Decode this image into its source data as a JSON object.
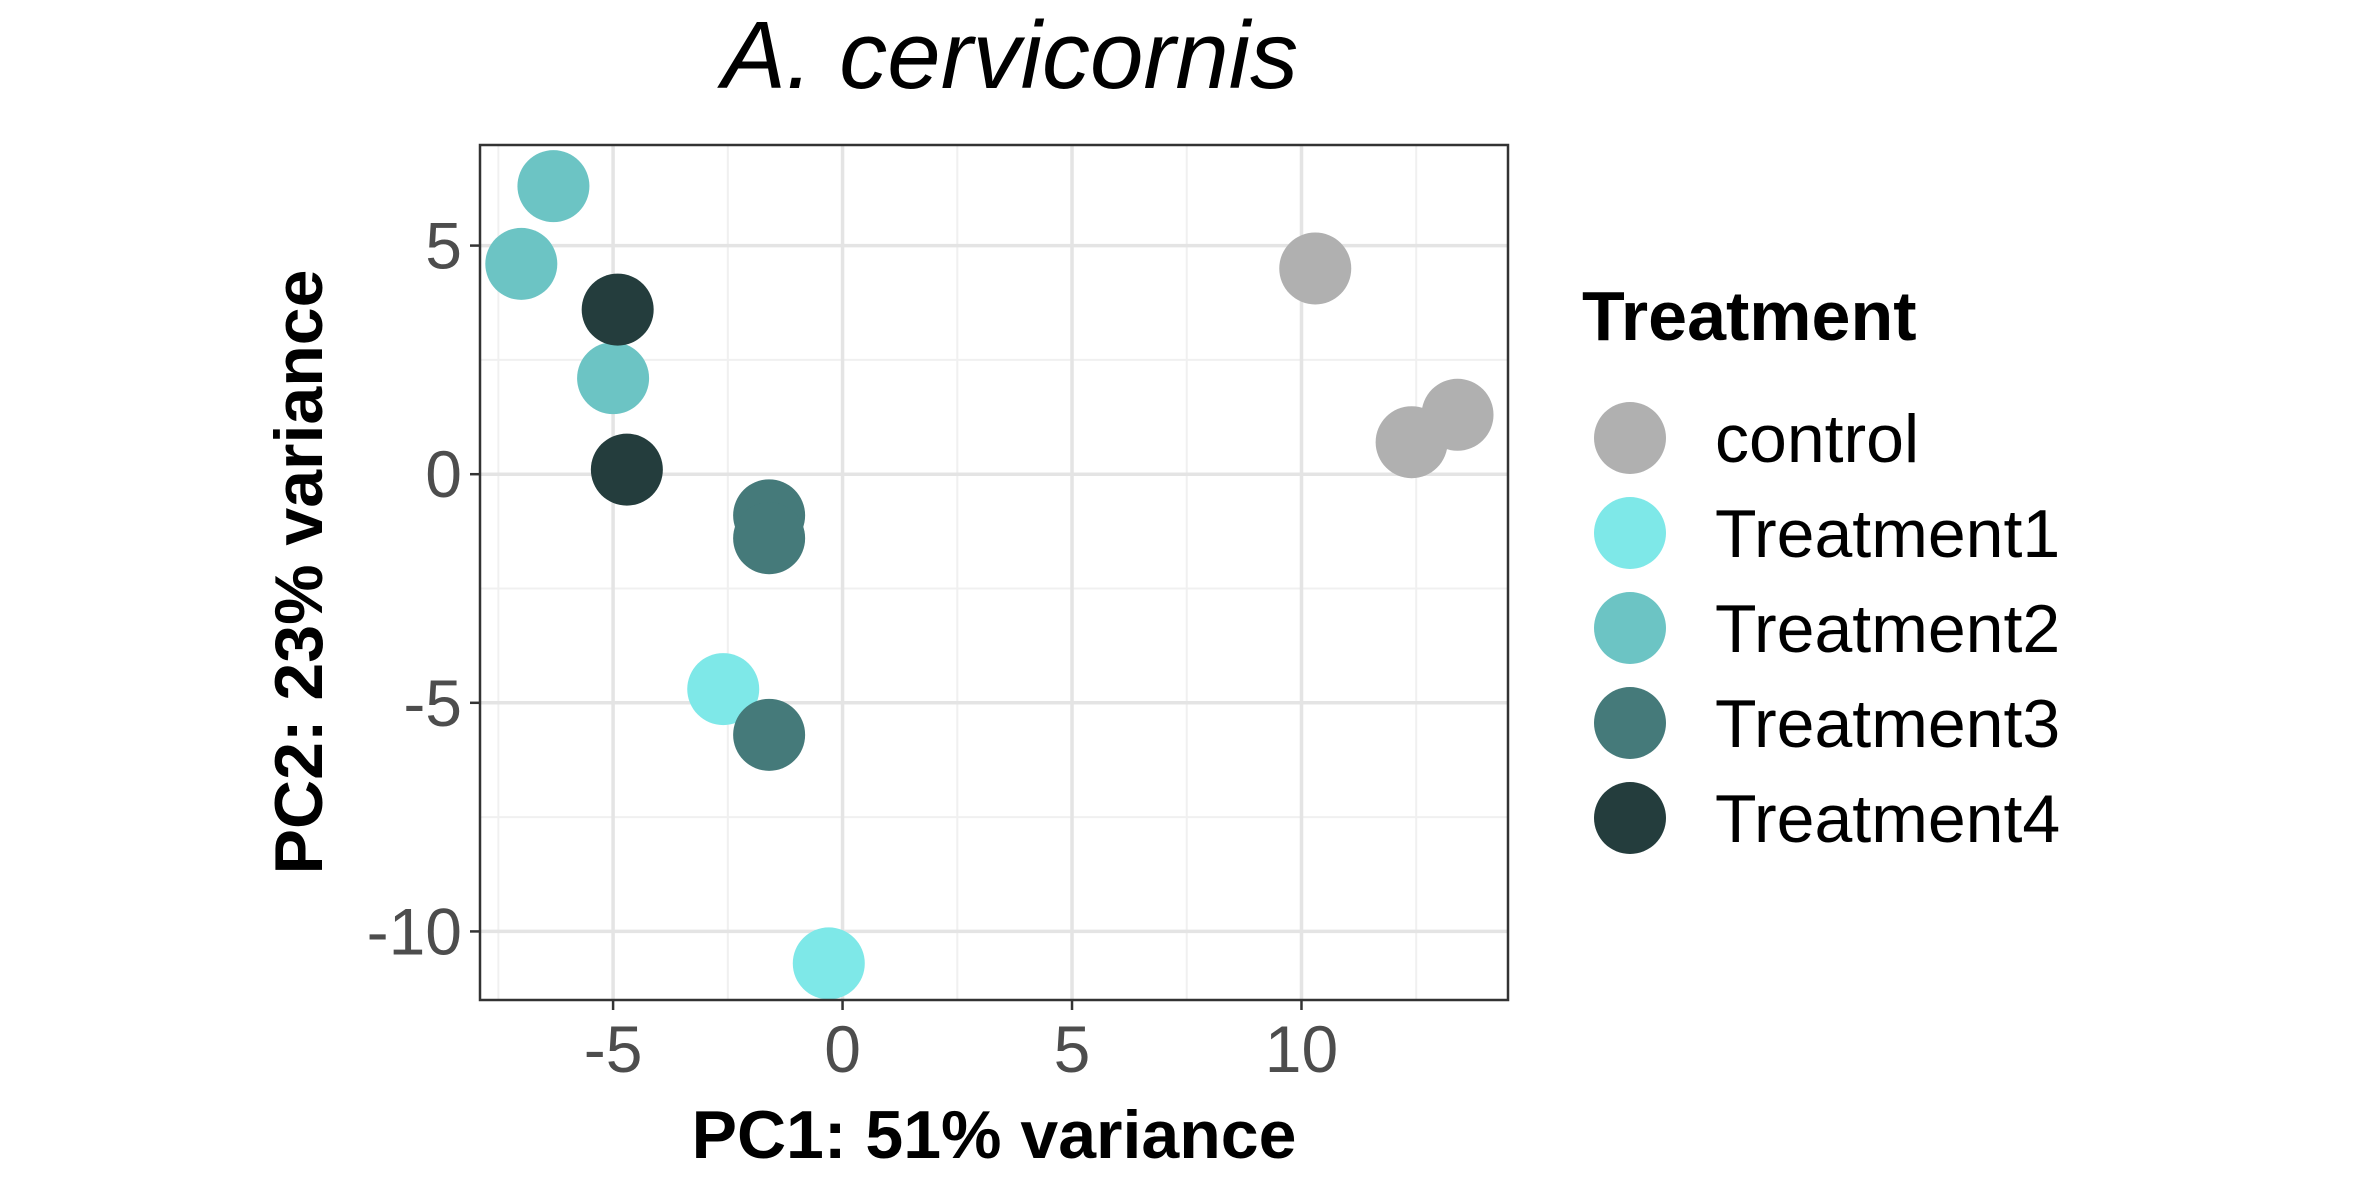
{
  "chart_data": {
    "type": "scatter",
    "title": "A. cervicornis",
    "xlabel": "PC1: 51% variance",
    "ylabel": "PC2: 23% variance",
    "xlim": [
      -7.9,
      14.5
    ],
    "ylim": [
      -11.5,
      7.2
    ],
    "x_ticks": [
      -5,
      0,
      5,
      10
    ],
    "y_ticks": [
      5,
      0,
      -5,
      -10
    ],
    "x_tick_labels": [
      "-5",
      "0",
      "5",
      "10"
    ],
    "y_tick_labels": [
      "5",
      "0",
      "-5",
      "-10"
    ],
    "grid": true,
    "legend": {
      "title": "Treatment",
      "position": "right"
    },
    "series": [
      {
        "name": "control",
        "color": "#b0b0b0",
        "points": [
          [
            10.3,
            4.5
          ],
          [
            12.4,
            0.7
          ],
          [
            13.4,
            1.3
          ]
        ]
      },
      {
        "name": "Treatment1",
        "color": "#7ee8e8",
        "points": [
          [
            -2.6,
            -4.7
          ],
          [
            -0.3,
            -10.7
          ]
        ]
      },
      {
        "name": "Treatment2",
        "color": "#6cc4c4",
        "points": [
          [
            -6.3,
            6.3
          ],
          [
            -7.0,
            4.6
          ],
          [
            -5.0,
            2.1
          ]
        ]
      },
      {
        "name": "Treatment3",
        "color": "#457a7a",
        "points": [
          [
            -1.6,
            -0.9
          ],
          [
            -1.6,
            -1.4
          ],
          [
            -1.6,
            -5.7
          ]
        ]
      },
      {
        "name": "Treatment4",
        "color": "#243d3d",
        "points": [
          [
            -4.9,
            3.6
          ],
          [
            -4.7,
            0.1
          ]
        ]
      }
    ]
  }
}
